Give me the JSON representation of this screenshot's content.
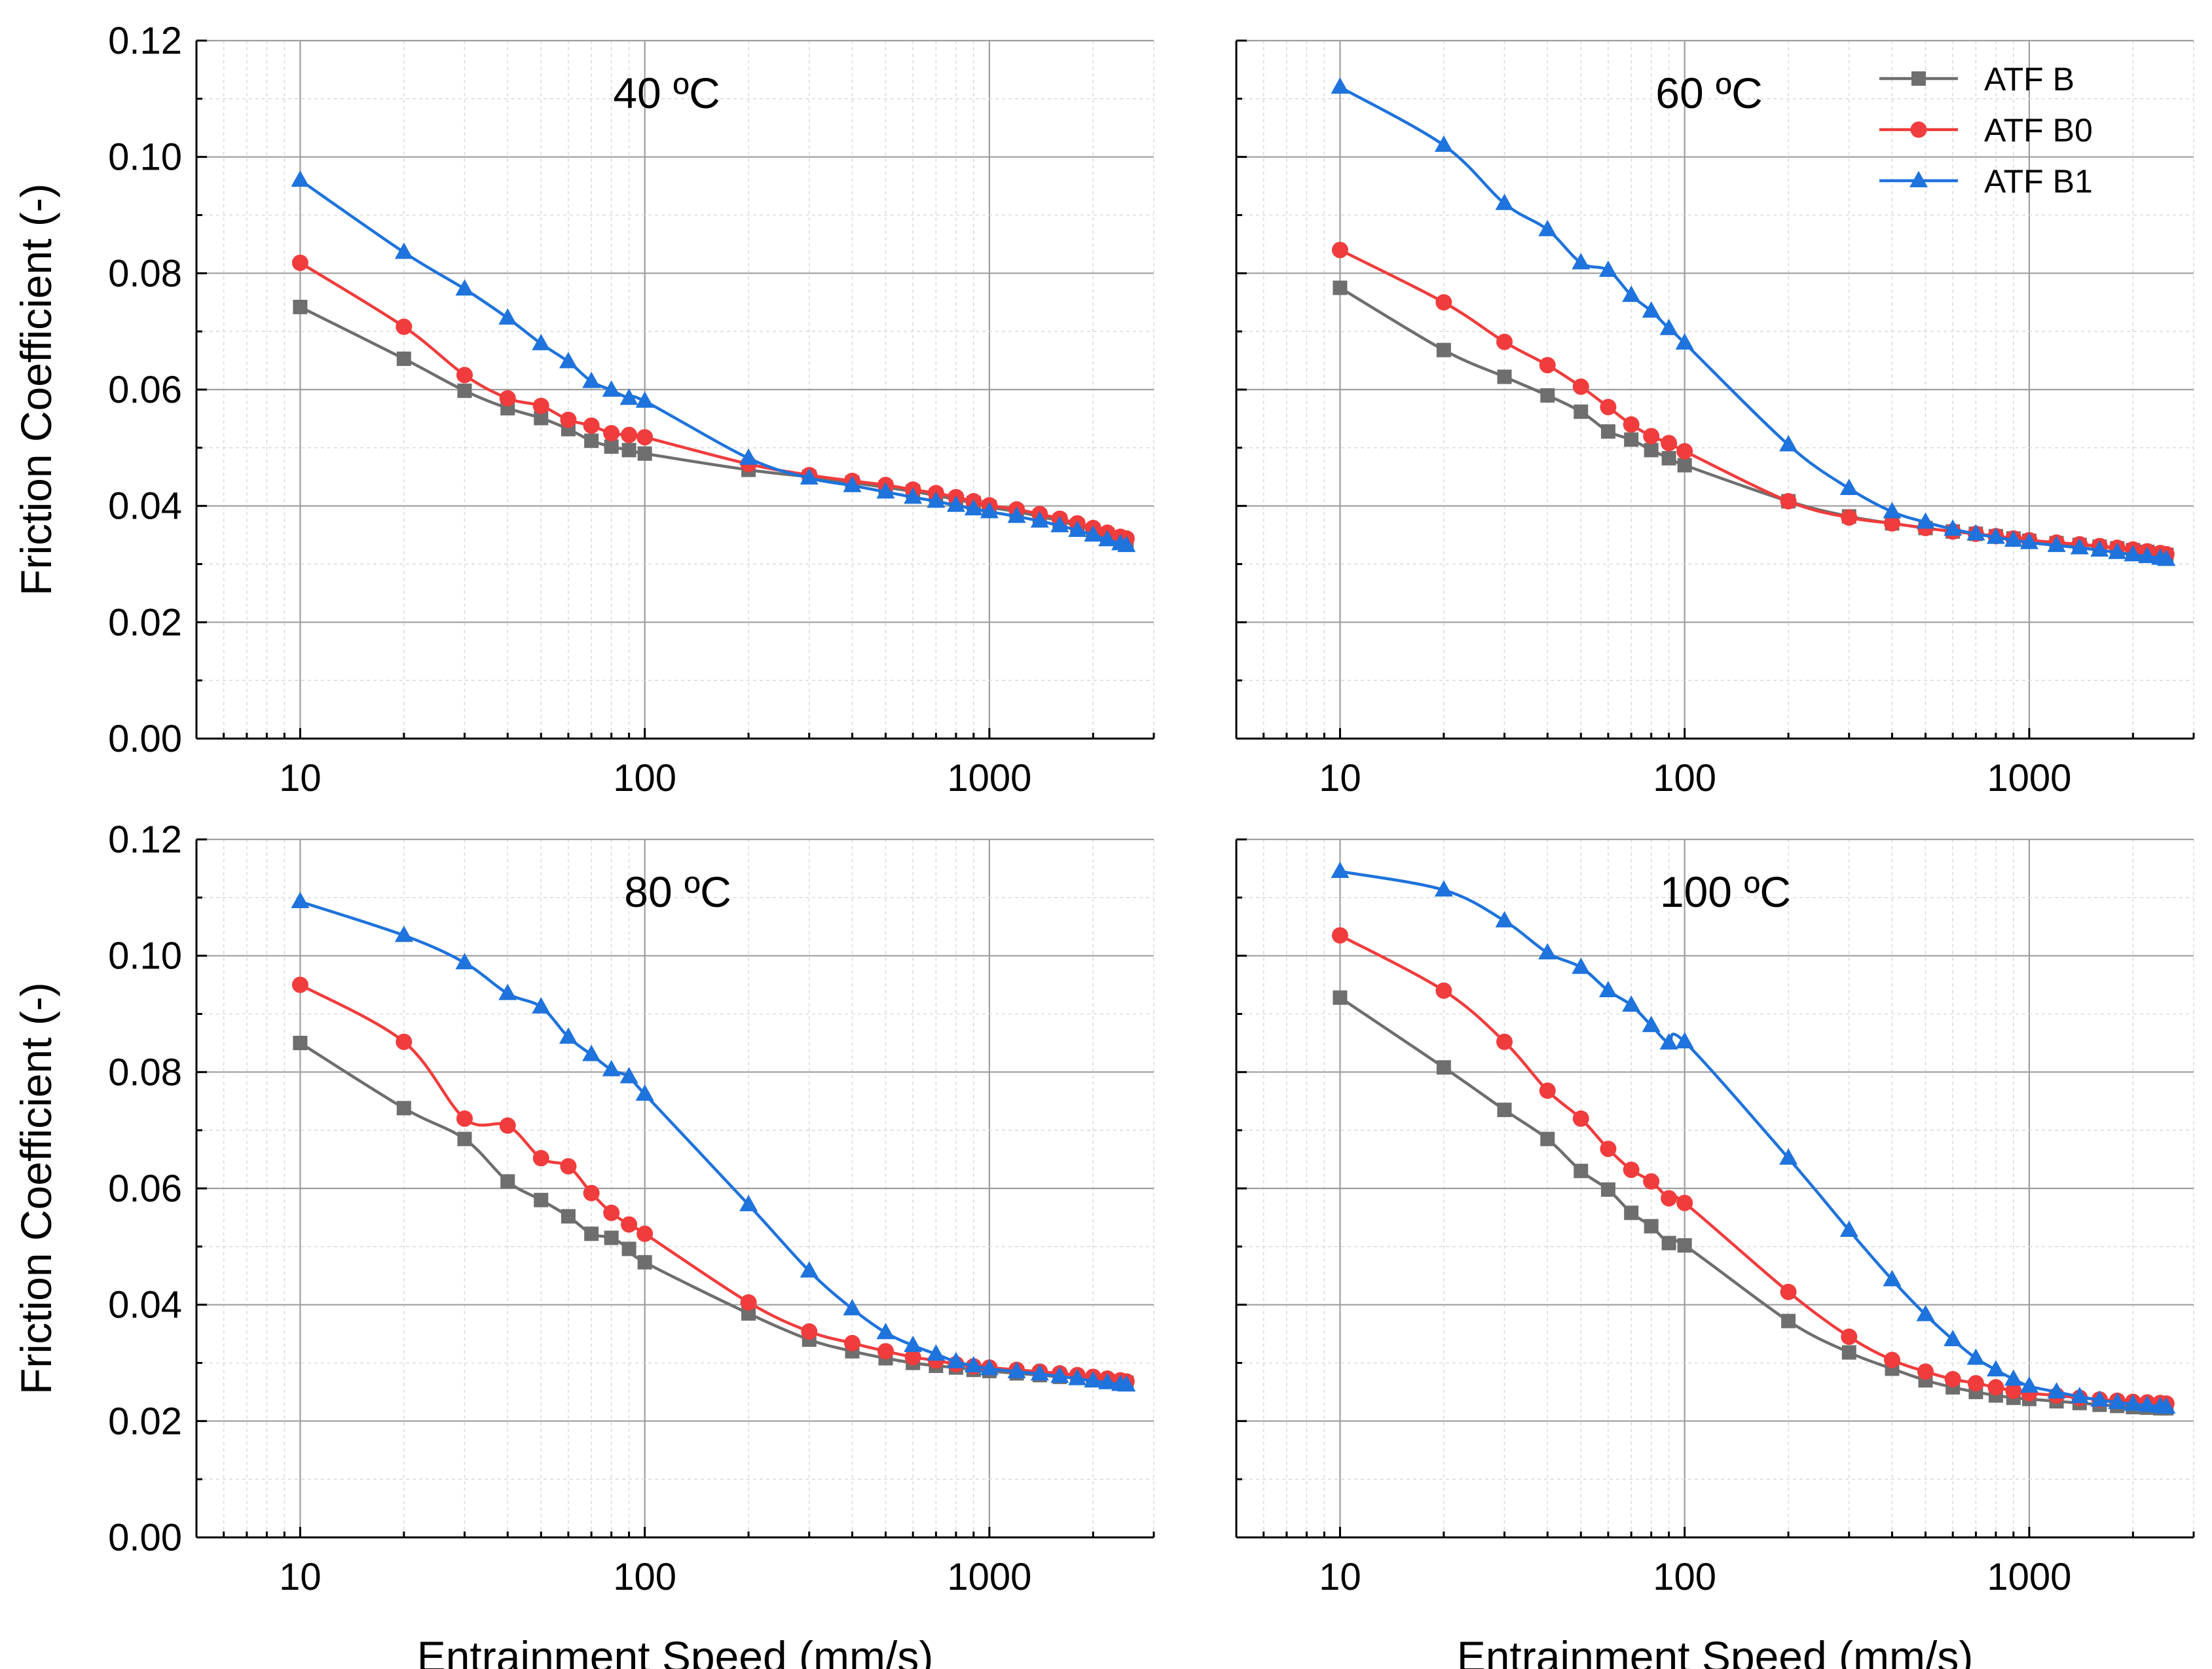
{
  "colors": {
    "ATF B": "#6e6e6e",
    "ATF B0": "#f03c3c",
    "ATF B1": "#1e73dc",
    "grid": "#bdbdbd",
    "axis": "#000000"
  },
  "chart_data": [
    {
      "type": "line",
      "title": "40 ºC",
      "xscale": "log",
      "xlim": [
        5,
        3000
      ],
      "ylim": [
        0,
        0.12
      ],
      "xticks": [
        "10",
        "100",
        "1000"
      ],
      "yticks": [
        "0.00",
        "0.02",
        "0.04",
        "0.06",
        "0.08",
        "0.10",
        "0.12"
      ],
      "ylabel": "Friction Coefficient (-)",
      "xlabel": "",
      "grid": true,
      "series": [
        {
          "name": "ATF B",
          "marker": "square",
          "x": [
            10,
            20,
            30,
            40,
            50,
            60,
            70,
            80,
            90,
            100,
            200,
            300,
            400,
            500,
            600,
            700,
            800,
            900,
            1000,
            1200,
            1400,
            1600,
            1800,
            2000,
            2200,
            2400,
            2500
          ],
          "y": [
            0.0742,
            0.0653,
            0.0598,
            0.0568,
            0.0551,
            0.0532,
            0.0512,
            0.0502,
            0.0496,
            0.049,
            0.0462,
            0.045,
            0.044,
            0.0432,
            0.0425,
            0.0418,
            0.0411,
            0.0405,
            0.0398,
            0.039,
            0.0382,
            0.0374,
            0.0366,
            0.0358,
            0.035,
            0.0343,
            0.034
          ]
        },
        {
          "name": "ATF B0",
          "marker": "circle",
          "x": [
            10,
            20,
            30,
            40,
            50,
            60,
            70,
            80,
            90,
            100,
            200,
            300,
            400,
            500,
            600,
            700,
            800,
            900,
            1000,
            1200,
            1400,
            1600,
            1800,
            2000,
            2200,
            2400,
            2500
          ],
          "y": [
            0.0818,
            0.0708,
            0.0625,
            0.0585,
            0.0572,
            0.0548,
            0.0538,
            0.0525,
            0.0522,
            0.0518,
            0.0472,
            0.0453,
            0.0443,
            0.0436,
            0.0428,
            0.0422,
            0.0415,
            0.0408,
            0.0401,
            0.0394,
            0.0386,
            0.0378,
            0.037,
            0.0362,
            0.0354,
            0.0347,
            0.0344
          ]
        },
        {
          "name": "ATF B1",
          "marker": "triangle",
          "x": [
            10,
            20,
            30,
            40,
            50,
            60,
            70,
            80,
            90,
            100,
            200,
            300,
            400,
            500,
            600,
            700,
            800,
            900,
            1000,
            1200,
            1400,
            1600,
            1800,
            2000,
            2200,
            2400,
            2500
          ],
          "y": [
            0.096,
            0.0836,
            0.0773,
            0.0723,
            0.0679,
            0.0648,
            0.0614,
            0.0599,
            0.0585,
            0.058,
            0.0482,
            0.0448,
            0.0435,
            0.0424,
            0.0415,
            0.0408,
            0.0401,
            0.0395,
            0.039,
            0.0382,
            0.0374,
            0.0366,
            0.0358,
            0.035,
            0.0342,
            0.0335,
            0.0332
          ]
        }
      ]
    },
    {
      "type": "line",
      "title": "60 ºC",
      "xscale": "log",
      "xlim": [
        5,
        3000
      ],
      "ylim": [
        0,
        0.12
      ],
      "xticks": [
        "10",
        "100",
        "1000"
      ],
      "yticks": [],
      "ylabel": "",
      "xlabel": "",
      "grid": true,
      "legend_position": "top-right",
      "series": [
        {
          "name": "ATF B",
          "marker": "square",
          "x": [
            10,
            20,
            30,
            40,
            50,
            60,
            70,
            80,
            90,
            100,
            200,
            300,
            400,
            500,
            600,
            700,
            800,
            900,
            1000,
            1200,
            1400,
            1600,
            1800,
            2000,
            2200,
            2400,
            2500
          ],
          "y": [
            0.0775,
            0.0668,
            0.0622,
            0.059,
            0.0562,
            0.0528,
            0.0514,
            0.0496,
            0.0482,
            0.047,
            0.0408,
            0.0382,
            0.037,
            0.0362,
            0.0356,
            0.0352,
            0.0348,
            0.0344,
            0.034,
            0.0336,
            0.0333,
            0.033,
            0.0327,
            0.0324,
            0.0321,
            0.0318,
            0.0316
          ]
        },
        {
          "name": "ATF B0",
          "marker": "circle",
          "x": [
            10,
            20,
            30,
            40,
            50,
            60,
            70,
            80,
            90,
            100,
            200,
            300,
            400,
            500,
            600,
            700,
            800,
            900,
            1000,
            1200,
            1400,
            1600,
            1800,
            2000,
            2200,
            2400,
            2500
          ],
          "y": [
            0.084,
            0.075,
            0.0682,
            0.0642,
            0.0605,
            0.057,
            0.054,
            0.052,
            0.0508,
            0.0494,
            0.0408,
            0.038,
            0.037,
            0.0362,
            0.0356,
            0.0352,
            0.0348,
            0.0344,
            0.0341,
            0.0337,
            0.0334,
            0.0331,
            0.0328,
            0.0325,
            0.0322,
            0.0319,
            0.0317
          ]
        },
        {
          "name": "ATF B1",
          "marker": "triangle",
          "x": [
            10,
            20,
            30,
            40,
            50,
            60,
            70,
            80,
            90,
            100,
            200,
            300,
            400,
            500,
            600,
            700,
            800,
            900,
            1000,
            1200,
            1400,
            1600,
            1800,
            2000,
            2200,
            2400,
            2500
          ],
          "y": [
            0.112,
            0.102,
            0.092,
            0.0875,
            0.0818,
            0.0805,
            0.0762,
            0.0735,
            0.0705,
            0.068,
            0.0505,
            0.043,
            0.039,
            0.0372,
            0.036,
            0.0352,
            0.0346,
            0.0341,
            0.0337,
            0.0332,
            0.0328,
            0.0324,
            0.032,
            0.0316,
            0.0313,
            0.031,
            0.0308
          ]
        }
      ]
    },
    {
      "type": "line",
      "title": "80 ºC",
      "xscale": "log",
      "xlim": [
        5,
        3000
      ],
      "ylim": [
        0,
        0.12
      ],
      "xticks": [
        "10",
        "100",
        "1000"
      ],
      "yticks": [
        "0.00",
        "0.02",
        "0.04",
        "0.06",
        "0.08",
        "0.10",
        "0.12"
      ],
      "ylabel": "Friction Coefficient (-)",
      "xlabel": "Entrainment Speed (mm/s)",
      "grid": true,
      "series": [
        {
          "name": "ATF B",
          "marker": "square",
          "x": [
            10,
            20,
            30,
            40,
            50,
            60,
            70,
            80,
            90,
            100,
            200,
            300,
            400,
            500,
            600,
            700,
            800,
            900,
            1000,
            1200,
            1400,
            1600,
            1800,
            2000,
            2200,
            2400,
            2500
          ],
          "y": [
            0.085,
            0.0738,
            0.0685,
            0.0612,
            0.058,
            0.0552,
            0.0522,
            0.0515,
            0.0496,
            0.0473,
            0.0385,
            0.034,
            0.032,
            0.0308,
            0.03,
            0.0295,
            0.0292,
            0.0288,
            0.0286,
            0.0282,
            0.0279,
            0.0276,
            0.0274,
            0.0271,
            0.0269,
            0.0267,
            0.0266
          ]
        },
        {
          "name": "ATF B0",
          "marker": "circle",
          "x": [
            10,
            20,
            30,
            40,
            50,
            60,
            70,
            80,
            90,
            100,
            200,
            300,
            400,
            500,
            600,
            700,
            800,
            900,
            1000,
            1200,
            1400,
            1600,
            1800,
            2000,
            2200,
            2400,
            2500
          ],
          "y": [
            0.095,
            0.0852,
            0.072,
            0.0708,
            0.0652,
            0.0638,
            0.0592,
            0.0558,
            0.0538,
            0.0522,
            0.0404,
            0.0354,
            0.0334,
            0.032,
            0.031,
            0.0304,
            0.0298,
            0.0294,
            0.0292,
            0.0288,
            0.0285,
            0.0282,
            0.0279,
            0.0276,
            0.0273,
            0.027,
            0.0268
          ]
        },
        {
          "name": "ATF B1",
          "marker": "triangle",
          "x": [
            10,
            20,
            30,
            40,
            50,
            60,
            70,
            80,
            90,
            100,
            200,
            300,
            400,
            500,
            600,
            700,
            800,
            900,
            1000,
            1200,
            1400,
            1600,
            1800,
            2000,
            2200,
            2400,
            2500
          ],
          "y": [
            0.1093,
            0.1035,
            0.0988,
            0.0935,
            0.0912,
            0.086,
            0.083,
            0.0804,
            0.0792,
            0.0762,
            0.0572,
            0.0458,
            0.0393,
            0.0352,
            0.033,
            0.0315,
            0.0302,
            0.0295,
            0.029,
            0.0285,
            0.0281,
            0.0277,
            0.0273,
            0.0269,
            0.0266,
            0.0263,
            0.0262
          ]
        }
      ]
    },
    {
      "type": "line",
      "title": "100 ºC",
      "xscale": "log",
      "xlim": [
        5,
        3000
      ],
      "ylim": [
        0,
        0.12
      ],
      "xticks": [
        "10",
        "100",
        "1000"
      ],
      "yticks": [],
      "ylabel": "",
      "xlabel": "Entrainment Speed (mm/s)",
      "grid": true,
      "series": [
        {
          "name": "ATF B",
          "marker": "square",
          "x": [
            10,
            20,
            30,
            40,
            50,
            60,
            70,
            80,
            90,
            100,
            200,
            300,
            400,
            500,
            600,
            700,
            800,
            900,
            1000,
            1200,
            1400,
            1600,
            1800,
            2000,
            2200,
            2400,
            2500
          ],
          "y": [
            0.0928,
            0.0808,
            0.0735,
            0.0685,
            0.063,
            0.0598,
            0.0558,
            0.0535,
            0.0506,
            0.0502,
            0.0372,
            0.0318,
            0.029,
            0.027,
            0.0258,
            0.025,
            0.0244,
            0.024,
            0.0238,
            0.0234,
            0.0231,
            0.0228,
            0.0226,
            0.0224,
            0.0223,
            0.0222,
            0.0222
          ]
        },
        {
          "name": "ATF B0",
          "marker": "circle",
          "x": [
            10,
            20,
            30,
            40,
            50,
            60,
            70,
            80,
            90,
            100,
            200,
            300,
            400,
            500,
            600,
            700,
            800,
            900,
            1000,
            1200,
            1400,
            1600,
            1800,
            2000,
            2200,
            2400,
            2500
          ],
          "y": [
            0.1035,
            0.094,
            0.0852,
            0.0768,
            0.072,
            0.0668,
            0.0632,
            0.0612,
            0.0583,
            0.0575,
            0.0422,
            0.0345,
            0.0305,
            0.0285,
            0.0272,
            0.0265,
            0.0258,
            0.0252,
            0.0248,
            0.0244,
            0.024,
            0.0237,
            0.0235,
            0.0233,
            0.0232,
            0.0231,
            0.023
          ]
        },
        {
          "name": "ATF B1",
          "marker": "triangle",
          "x": [
            10,
            20,
            30,
            40,
            50,
            60,
            70,
            80,
            90,
            100,
            200,
            300,
            400,
            500,
            600,
            700,
            800,
            900,
            1000,
            1200,
            1400,
            1600,
            1800,
            2000,
            2200,
            2400,
            2500
          ],
          "y": [
            0.1145,
            0.1113,
            0.106,
            0.1005,
            0.098,
            0.094,
            0.0915,
            0.088,
            0.085,
            0.0852,
            0.0652,
            0.0528,
            0.0443,
            0.0383,
            0.034,
            0.0308,
            0.0288,
            0.0272,
            0.026,
            0.025,
            0.0242,
            0.0236,
            0.0232,
            0.0229,
            0.0227,
            0.0225,
            0.0224
          ]
        }
      ]
    }
  ]
}
